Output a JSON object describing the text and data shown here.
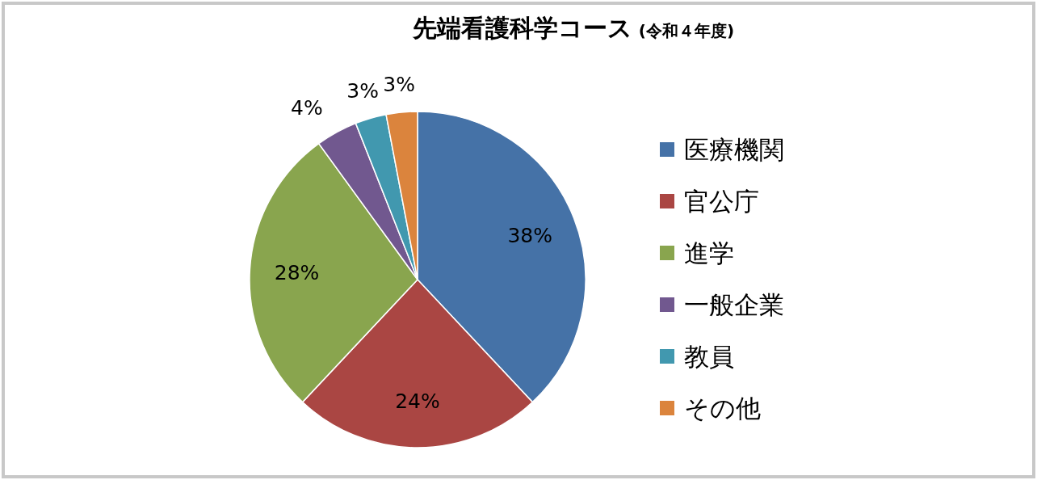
{
  "chart_data": {
    "type": "pie",
    "title": "先端看護科学コース",
    "subtitle": "(令和４年度)",
    "categories": [
      "医療機関",
      "官公庁",
      "進学",
      "一般企業",
      "教員",
      "その他"
    ],
    "values": [
      38,
      24,
      28,
      4,
      3,
      3
    ],
    "colors": [
      "#4572a7",
      "#aa4643",
      "#89a54e",
      "#71588f",
      "#4198af",
      "#db843d"
    ],
    "value_labels": [
      "38%",
      "24%",
      "28%",
      "4%",
      "3%",
      "3%"
    ],
    "legend": "right"
  }
}
